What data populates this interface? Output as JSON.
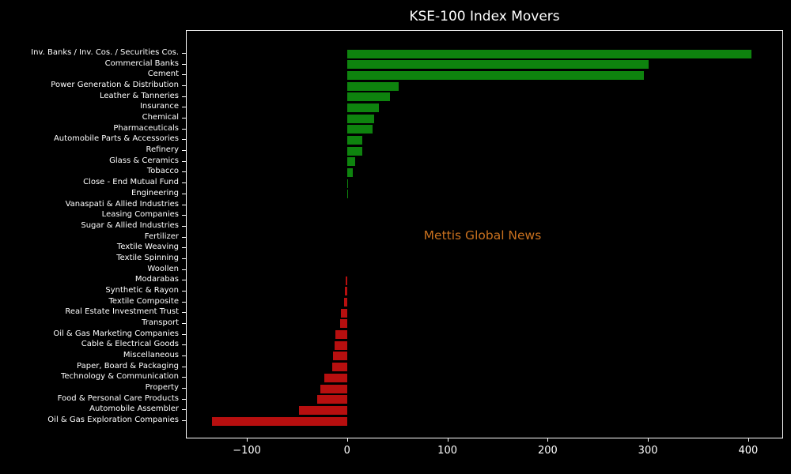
{
  "title": "KSE-100 Index Movers",
  "watermark": "Mettis Global News",
  "colors": {
    "background": "#000000",
    "text": "#ffffff",
    "spine": "#ffffff",
    "positive_bar": "#0e830e",
    "negative_bar": "#b70f0f",
    "watermark": "#c8701e"
  },
  "chart_data": {
    "type": "bar",
    "orientation": "horizontal",
    "title": "KSE-100 Index Movers",
    "xlabel": "",
    "ylabel": "",
    "grid": false,
    "legend": null,
    "annotation": "Mettis Global News",
    "xlim": [
      -160,
      434
    ],
    "xticks": [
      {
        "value": -100,
        "label": "−100"
      },
      {
        "value": 0,
        "label": "0"
      },
      {
        "value": 100,
        "label": "100"
      },
      {
        "value": 200,
        "label": "200"
      },
      {
        "value": 300,
        "label": "300"
      },
      {
        "value": 400,
        "label": "400"
      }
    ],
    "categories": [
      "Inv. Banks / Inv. Cos. / Securities Cos.",
      "Commercial Banks",
      "Cement",
      "Power Generation & Distribution",
      "Leather & Tanneries",
      "Insurance",
      "Chemical",
      "Pharmaceuticals",
      "Automobile Parts & Accessories",
      "Refinery",
      "Glass & Ceramics",
      "Tobacco",
      "Close - End Mutual Fund",
      "Engineering",
      "Vanaspati & Allied Industries",
      "Leasing Companies",
      "Sugar & Allied Industries",
      "Fertilizer",
      "Textile Weaving",
      "Textile Spinning",
      "Woollen",
      "Modarabas",
      "Synthetic & Rayon",
      "Textile Composite",
      "Real Estate Investment Trust",
      "Transport",
      "Oil & Gas Marketing Companies",
      "Cable & Electrical Goods",
      "Miscellaneous",
      "Paper, Board & Packaging",
      "Technology & Communication",
      "Property",
      "Food & Personal Care Products",
      "Automobile Assembler",
      "Oil & Gas Exploration Companies"
    ],
    "values": [
      403,
      301,
      296,
      51.5,
      43,
      31.6,
      27,
      25.5,
      15.5,
      15,
      8,
      5.5,
      1,
      1.3,
      0,
      0,
      0,
      0,
      0,
      0,
      0,
      -1.2,
      -2,
      -3.3,
      -5.9,
      -7,
      -12,
      -12.7,
      -13.8,
      -14.8,
      -22.4,
      -27,
      -30,
      -48,
      -135
    ]
  }
}
